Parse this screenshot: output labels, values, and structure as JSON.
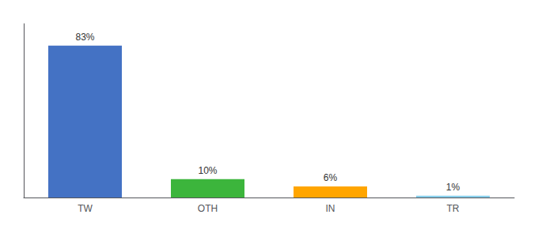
{
  "chart_data": {
    "type": "bar",
    "categories": [
      "TW",
      "OTH",
      "IN",
      "TR"
    ],
    "values": [
      83,
      10,
      6,
      1
    ],
    "value_labels": [
      "83%",
      "10%",
      "6%",
      "1%"
    ],
    "data_labels": true,
    "colors": [
      "#4472C4",
      "#3CB53C",
      "#FFA500",
      "#87CEEB"
    ],
    "ylim": [
      0,
      95
    ],
    "tick_labels": "x",
    "grid": false
  }
}
